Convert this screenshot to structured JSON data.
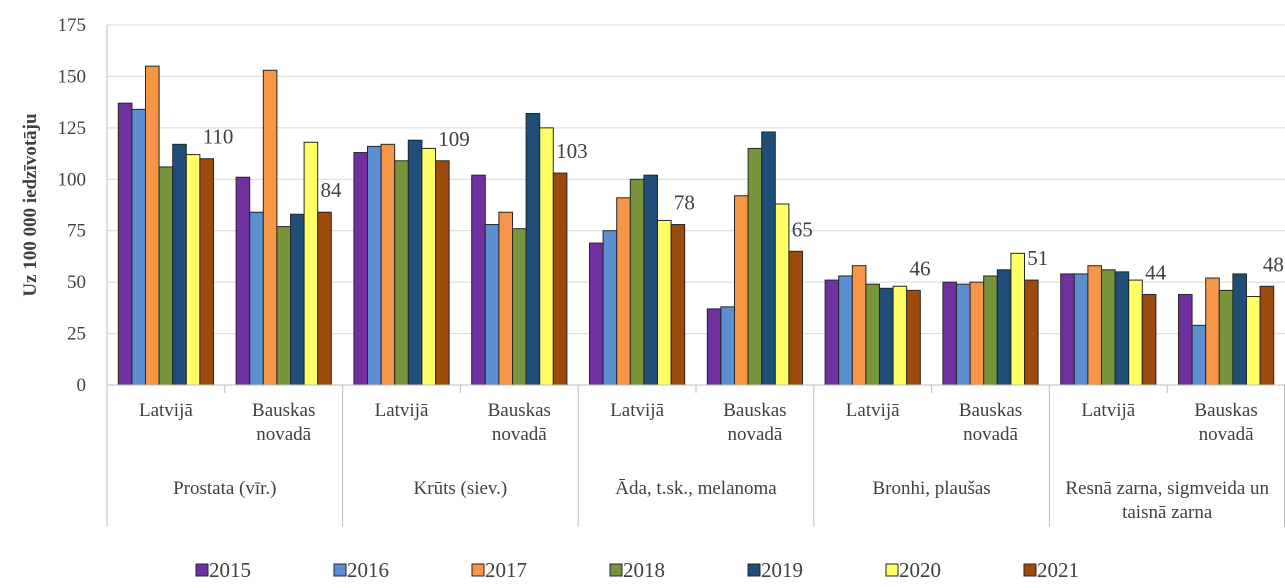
{
  "chart_data": {
    "type": "bar",
    "title": "",
    "ylabel": "Uz 100 000 iedzīvotāju",
    "xlabel": "",
    "ylim": [
      0,
      175
    ],
    "yticks": [
      0,
      25,
      50,
      75,
      100,
      125,
      150,
      175
    ],
    "grid": true,
    "legend_position": "bottom",
    "groups": [
      {
        "name": "Prostata (vīr.)",
        "categories": [
          "Latvijā",
          "Bauskas novadā"
        ]
      },
      {
        "name": "Krūts (siev.)",
        "categories": [
          "Latvijā",
          "Bauskas novadā"
        ]
      },
      {
        "name": "Āda, t.sk., melanoma",
        "categories": [
          "Latvijā",
          "Bauskas novadā"
        ]
      },
      {
        "name": "Bronhi, plaušas",
        "categories": [
          "Latvijā",
          "Bauskas novadā"
        ]
      },
      {
        "name": "Resnā zarna, sigmveida un taisnā zarna",
        "categories": [
          "Latvijā",
          "Bauskas novadā"
        ]
      }
    ],
    "series": [
      {
        "name": "2015",
        "color": "#7030A0",
        "values": [
          137,
          101,
          113,
          102,
          69,
          37,
          51,
          50,
          54,
          44
        ]
      },
      {
        "name": "2016",
        "color": "#5B8FD0",
        "values": [
          134,
          84,
          116,
          78,
          75,
          38,
          53,
          49,
          54,
          29
        ]
      },
      {
        "name": "2017",
        "color": "#F79646",
        "values": [
          155,
          153,
          117,
          84,
          91,
          92,
          58,
          50,
          58,
          52
        ]
      },
      {
        "name": "2018",
        "color": "#77933C",
        "values": [
          106,
          77,
          109,
          76,
          100,
          115,
          49,
          53,
          56,
          46
        ]
      },
      {
        "name": "2019",
        "color": "#1F4E79",
        "values": [
          117,
          83,
          119,
          132,
          102,
          123,
          47,
          56,
          55,
          54
        ]
      },
      {
        "name": "2020",
        "color": "#FFFF66",
        "values": [
          112,
          118,
          115,
          125,
          80,
          88,
          48,
          64,
          51,
          43
        ]
      },
      {
        "name": "2021",
        "color": "#9C4A0E",
        "values": [
          110,
          84,
          109,
          103,
          78,
          65,
          46,
          51,
          44,
          48
        ]
      }
    ],
    "data_labels": [
      {
        "series": "2021",
        "index": 0,
        "text": "110"
      },
      {
        "series": "2021",
        "index": 1,
        "text": "84"
      },
      {
        "series": "2021",
        "index": 2,
        "text": "109"
      },
      {
        "series": "2021",
        "index": 3,
        "text": "103"
      },
      {
        "series": "2021",
        "index": 4,
        "text": "78"
      },
      {
        "series": "2021",
        "index": 5,
        "text": "65"
      },
      {
        "series": "2021",
        "index": 6,
        "text": "46"
      },
      {
        "series": "2021",
        "index": 7,
        "text": "51"
      },
      {
        "series": "2021",
        "index": 8,
        "text": "44"
      },
      {
        "series": "2021",
        "index": 9,
        "text": "48"
      }
    ]
  }
}
